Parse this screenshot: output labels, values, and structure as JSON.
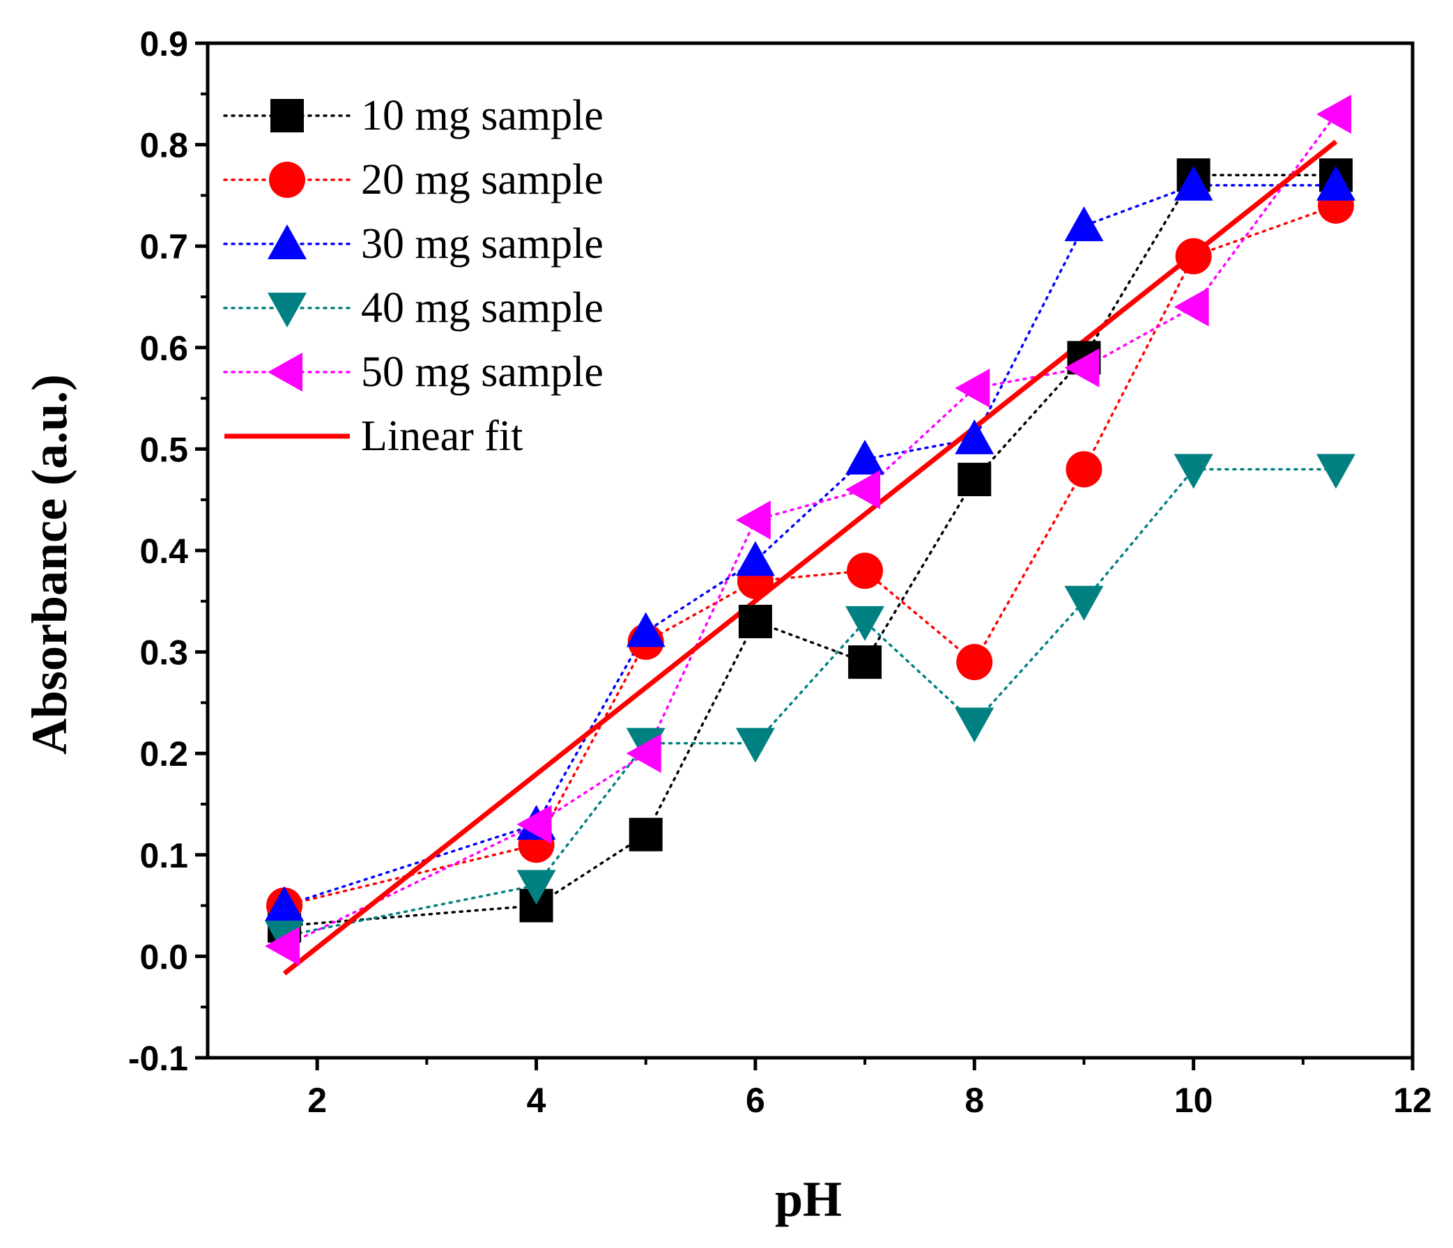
{
  "chart_data": {
    "type": "scatter",
    "title": "",
    "xlabel": "pH",
    "ylabel": "Absorbance (a.u.)",
    "xlim": [
      1,
      12
    ],
    "ylim": [
      -0.1,
      0.9
    ],
    "xticks": [
      "2",
      "4",
      "6",
      "8",
      "10",
      "12"
    ],
    "yticks": [
      "-0.1",
      "0.0",
      "0.1",
      "0.2",
      "0.3",
      "0.4",
      "0.5",
      "0.6",
      "0.7",
      "0.8",
      "0.9"
    ],
    "grid": false,
    "legend_position": "top-left",
    "x": [
      1.7,
      4,
      5,
      6,
      7,
      8,
      9,
      10,
      11.3
    ],
    "series": [
      {
        "name": "10 mg sample",
        "marker": "square",
        "color": "#000000",
        "values": [
          0.03,
          0.05,
          0.12,
          0.33,
          0.29,
          0.47,
          0.59,
          0.77,
          0.77
        ]
      },
      {
        "name": "20 mg sample",
        "marker": "circle",
        "color": "#ff0000",
        "values": [
          0.05,
          0.11,
          0.31,
          0.37,
          0.38,
          0.29,
          0.48,
          0.69,
          0.74
        ]
      },
      {
        "name": "30 mg sample",
        "marker": "triangle-up",
        "color": "#0000ff",
        "values": [
          0.05,
          0.13,
          0.32,
          0.39,
          0.49,
          0.51,
          0.72,
          0.76,
          0.76
        ]
      },
      {
        "name": "40 mg sample",
        "marker": "triangle-down",
        "color": "#008080",
        "values": [
          0.02,
          0.07,
          0.21,
          0.21,
          0.33,
          0.23,
          0.35,
          0.48,
          0.48
        ]
      },
      {
        "name": "50 mg sample",
        "marker": "triangle-left",
        "color": "#ff00ff",
        "values": [
          0.01,
          0.13,
          0.2,
          0.43,
          0.46,
          0.56,
          0.58,
          0.64,
          0.83
        ]
      }
    ],
    "linear_fit": {
      "name": "Linear fit",
      "color": "#ff0000",
      "x": [
        1.7,
        11.3
      ],
      "y": [
        -0.017,
        0.803
      ]
    }
  }
}
